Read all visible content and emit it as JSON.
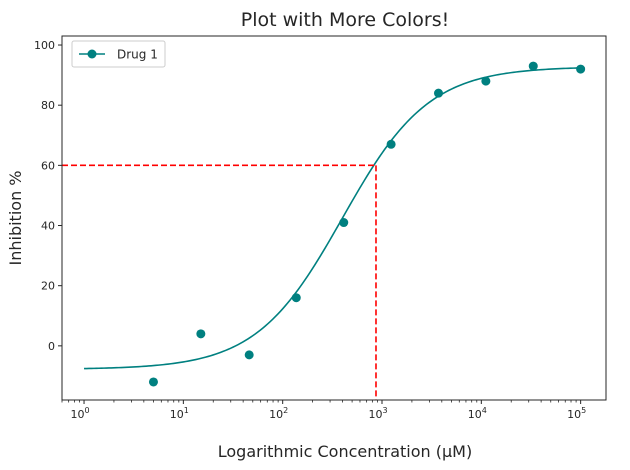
{
  "chart_data": {
    "type": "scatter",
    "title": "Plot with More Colors!",
    "xlabel": "Logarithmic Concentration (μM)",
    "ylabel": "Inhibition %",
    "x_scale": "log",
    "xlim": [
      0.6,
      180000
    ],
    "ylim": [
      -18,
      103
    ],
    "grid": false,
    "legend_position": "top-left",
    "x_ticks": [
      {
        "value": 1,
        "base": "10",
        "exp": "0"
      },
      {
        "value": 10,
        "base": "10",
        "exp": "1"
      },
      {
        "value": 100,
        "base": "10",
        "exp": "2"
      },
      {
        "value": 1000,
        "base": "10",
        "exp": "3"
      },
      {
        "value": 10000,
        "base": "10",
        "exp": "4"
      },
      {
        "value": 100000,
        "base": "10",
        "exp": "5"
      }
    ],
    "y_ticks": [
      0,
      20,
      40,
      60,
      80,
      100
    ],
    "series": [
      {
        "name": "Drug 1",
        "color": "#008080",
        "points": [
          {
            "x": 5,
            "y": -12
          },
          {
            "x": 15,
            "y": 4
          },
          {
            "x": 46,
            "y": -3
          },
          {
            "x": 137,
            "y": 16
          },
          {
            "x": 412,
            "y": 41
          },
          {
            "x": 1235,
            "y": 67
          },
          {
            "x": 3704,
            "y": 84
          },
          {
            "x": 11111,
            "y": 88
          },
          {
            "x": 33333,
            "y": 93
          },
          {
            "x": 100000,
            "y": 92
          }
        ],
        "fit": {
          "bottom": -7.8,
          "top": 92.8,
          "ec50": 400,
          "hill": 1.0,
          "x_range": [
            1,
            100000
          ]
        }
      }
    ],
    "reference_lines": {
      "color": "#ff0000",
      "y": 60,
      "x": 870
    }
  }
}
